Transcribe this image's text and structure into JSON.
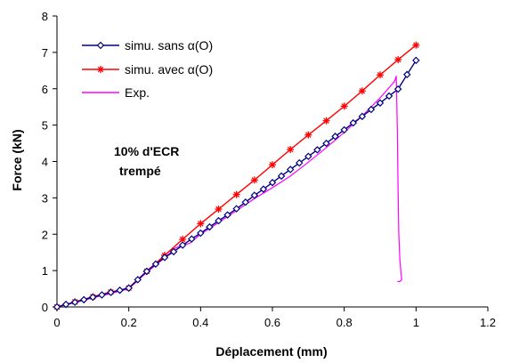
{
  "chart_data": {
    "type": "line",
    "xlabel": "Déplacement (mm)",
    "ylabel": "Force (kN)",
    "xlim": [
      0,
      1.2
    ],
    "ylim": [
      0,
      8
    ],
    "xticks": [
      "0",
      "0.2",
      "0.4",
      "0.6",
      "0.8",
      "1",
      "1.2"
    ],
    "yticks": [
      "0",
      "1",
      "2",
      "3",
      "4",
      "5",
      "6",
      "7",
      "8"
    ],
    "grid": false,
    "legend_position": "top-left",
    "annotation_line1": "10% d'ECR",
    "annotation_line2": "trempé",
    "series": [
      {
        "name": "simu. sans α(O)",
        "color": "#000080",
        "marker": "diamond",
        "x": [
          0,
          0.025,
          0.05,
          0.075,
          0.1,
          0.125,
          0.15,
          0.175,
          0.2,
          0.225,
          0.25,
          0.275,
          0.3,
          0.325,
          0.35,
          0.375,
          0.4,
          0.425,
          0.45,
          0.475,
          0.5,
          0.525,
          0.55,
          0.575,
          0.6,
          0.625,
          0.65,
          0.675,
          0.7,
          0.725,
          0.75,
          0.775,
          0.8,
          0.825,
          0.85,
          0.875,
          0.9,
          0.925,
          0.95,
          0.975,
          1.0
        ],
        "y": [
          0,
          0.07,
          0.13,
          0.2,
          0.27,
          0.33,
          0.4,
          0.46,
          0.52,
          0.75,
          0.98,
          1.18,
          1.36,
          1.52,
          1.7,
          1.87,
          2.03,
          2.2,
          2.37,
          2.53,
          2.7,
          2.88,
          3.07,
          3.24,
          3.42,
          3.6,
          3.78,
          3.96,
          4.14,
          4.32,
          4.5,
          4.69,
          4.87,
          5.06,
          5.24,
          5.43,
          5.61,
          5.8,
          5.99,
          6.39,
          6.78
        ]
      },
      {
        "name": "simu. avec α(O)",
        "color": "#ff0000",
        "marker": "star",
        "x": [
          0,
          0.05,
          0.1,
          0.15,
          0.2,
          0.25,
          0.3,
          0.35,
          0.4,
          0.45,
          0.5,
          0.55,
          0.6,
          0.65,
          0.7,
          0.75,
          0.8,
          0.85,
          0.9,
          0.95,
          1.0
        ],
        "y": [
          0,
          0.14,
          0.28,
          0.41,
          0.52,
          0.98,
          1.42,
          1.86,
          2.29,
          2.69,
          3.09,
          3.49,
          3.91,
          4.33,
          4.73,
          5.12,
          5.52,
          5.94,
          6.38,
          6.8,
          7.2
        ]
      },
      {
        "name": "Exp.",
        "color": "#ff00ff",
        "marker": "none",
        "x": [
          0,
          0.05,
          0.1,
          0.15,
          0.2,
          0.25,
          0.3,
          0.33,
          0.35,
          0.37,
          0.4,
          0.45,
          0.5,
          0.55,
          0.6,
          0.65,
          0.7,
          0.75,
          0.8,
          0.85,
          0.9,
          0.94,
          0.945,
          0.948,
          0.95,
          0.952,
          0.955,
          0.958,
          0.96,
          0.955,
          0.95,
          0.948
        ],
        "y": [
          0,
          0.12,
          0.25,
          0.37,
          0.5,
          0.95,
          1.35,
          1.62,
          1.7,
          1.75,
          2.0,
          2.32,
          2.65,
          2.98,
          3.28,
          3.6,
          3.98,
          4.38,
          4.8,
          5.25,
          5.75,
          6.2,
          6.35,
          4.8,
          3.2,
          2.0,
          1.3,
          0.95,
          0.75,
          0.7,
          0.7,
          0.7
        ]
      }
    ]
  }
}
